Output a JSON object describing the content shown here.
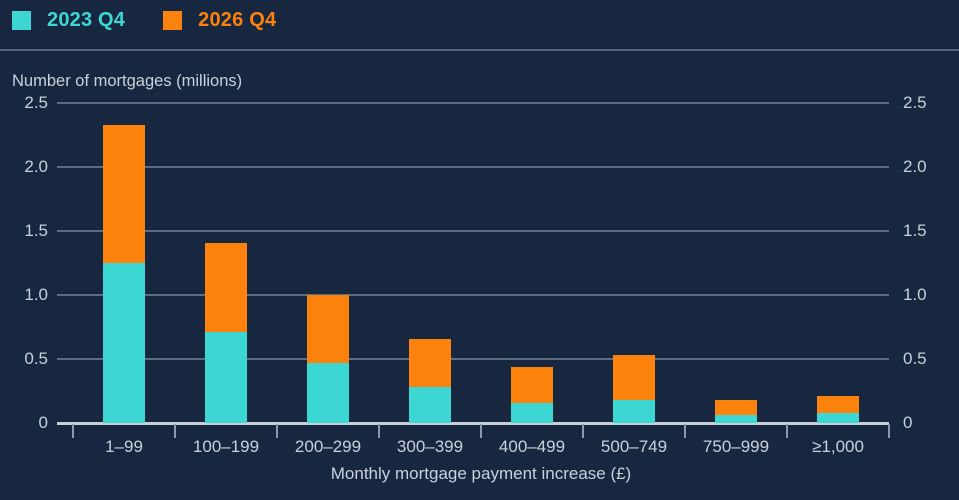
{
  "colors": {
    "background": "#16273f",
    "series_2023": "#3dd7d3",
    "series_2026": "#fb820c",
    "grid": "#5c6c7f",
    "axis_line": "#c7d0da",
    "label_text": "#c9d1db",
    "tick_mark": "#8b99a9",
    "separator": "#55667a"
  },
  "legend": {
    "items": [
      {
        "label": "2023 Q4",
        "color": "#3dd7d3"
      },
      {
        "label": "2026 Q4",
        "color": "#fb820c"
      }
    ]
  },
  "chart_data": {
    "type": "bar",
    "stacked": true,
    "title": "",
    "ylabel": "Number of mortgages (millions)",
    "xlabel": "Monthly mortgage payment increase (£)",
    "categories": [
      "1–99",
      "100–199",
      "200–299",
      "300–399",
      "400–499",
      "500–749",
      "750–999",
      "≥1,000"
    ],
    "series": [
      {
        "name": "2023 Q4",
        "color": "#3dd7d3",
        "values": [
          1.25,
          0.71,
          0.47,
          0.28,
          0.16,
          0.18,
          0.06,
          0.08
        ]
      },
      {
        "name": "2026 Q4",
        "color": "#fb820c",
        "values": [
          1.08,
          0.7,
          0.53,
          0.38,
          0.28,
          0.35,
          0.12,
          0.13
        ]
      }
    ],
    "stack_totals": [
      2.33,
      1.41,
      1.0,
      0.66,
      0.44,
      0.53,
      0.18,
      0.21
    ],
    "ylim": [
      0,
      2.5
    ],
    "yticks": [
      "0",
      "0.5",
      "1.0",
      "1.5",
      "2.0",
      "2.5"
    ],
    "grid": true,
    "legend_position": "top-left",
    "dual_y_axis_labels": true
  }
}
